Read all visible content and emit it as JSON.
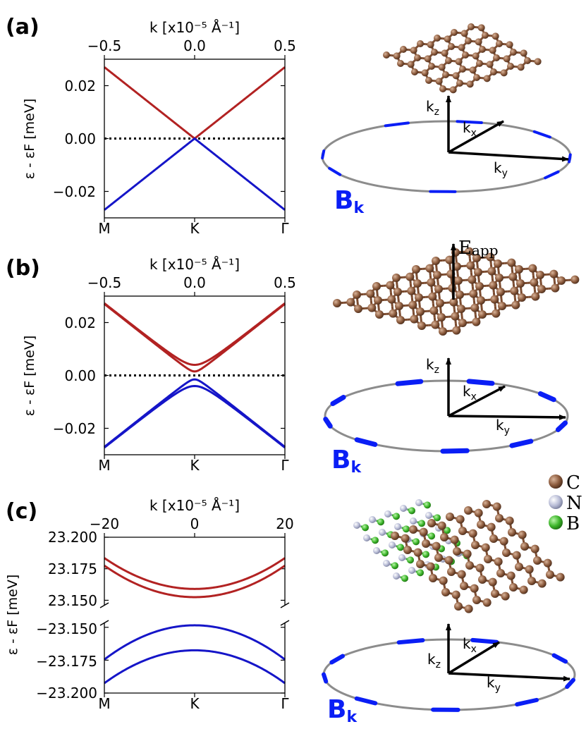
{
  "panel_labels": [
    "(a)",
    "(b)",
    "(c)"
  ],
  "colors": {
    "conduction": "#b22222",
    "valence": "#1515c8",
    "fermi": "#000000",
    "carbon": "#8b5a3c",
    "nitrogen": "#b8bcd6",
    "boron": "#3cb52a",
    "berry": "#0a1ef5",
    "ring": "#8c8c8c"
  },
  "chart_data": [
    {
      "type": "line",
      "panel": "(a)",
      "top_xlabel": "k [x10⁻⁵ Å⁻¹]",
      "top_xlim": [
        -0.5,
        0.5
      ],
      "top_ticks": [
        "−0.5",
        "0.0",
        "0.5"
      ],
      "ylabel": "ε - εF [meV]",
      "ylim": [
        -0.03,
        0.03
      ],
      "yticks": [
        0.02,
        0.0,
        -0.02
      ],
      "ytick_labels": [
        "0.02",
        "0.00",
        "−0.02"
      ],
      "bottom_ticks": [
        "M",
        "K",
        "Γ"
      ],
      "fermi_level": 0.0,
      "series": [
        {
          "name": "conduction",
          "color": "#b22222",
          "gap": 0.0,
          "slope": 0.054
        },
        {
          "name": "valence",
          "color": "#1515c8",
          "gap": 0.0,
          "slope": 0.054
        }
      ]
    },
    {
      "type": "line",
      "panel": "(b)",
      "top_xlabel": "k [x10⁻⁵ Å⁻¹]",
      "top_xlim": [
        -0.5,
        0.5
      ],
      "top_ticks": [
        "−0.5",
        "0.0",
        "0.5"
      ],
      "ylabel": "ε - εF [meV]",
      "ylim": [
        -0.03,
        0.03
      ],
      "yticks": [
        0.02,
        0.0,
        -0.02
      ],
      "ytick_labels": [
        "0.02",
        "0.00",
        "−0.02"
      ],
      "bottom_ticks": [
        "M",
        "K",
        "Γ"
      ],
      "fermi_level": 0.0,
      "series": [
        {
          "name": "conduction-1",
          "color": "#b22222",
          "gap": 0.0015,
          "slope": 0.054
        },
        {
          "name": "conduction-2",
          "color": "#b22222",
          "gap": 0.004,
          "slope": 0.054
        },
        {
          "name": "valence-1",
          "color": "#1515c8",
          "gap": -0.0015,
          "slope": 0.054
        },
        {
          "name": "valence-2",
          "color": "#1515c8",
          "gap": -0.004,
          "slope": 0.054
        }
      ]
    },
    {
      "type": "line",
      "panel": "(c)",
      "top_xlabel": "k [x10⁻⁵ Å⁻¹]",
      "top_xlim": [
        -20,
        20
      ],
      "top_ticks": [
        "−20",
        "0",
        "20"
      ],
      "ylabel": "ε - εF [meV]",
      "bottom_ticks": [
        "M",
        "K",
        "Γ"
      ],
      "upper": {
        "ylim": [
          23.148,
          23.2
        ],
        "yticks": [
          23.2,
          23.175,
          23.15
        ],
        "ytick_labels": [
          "23.200",
          "23.175",
          "23.150"
        ],
        "series": [
          {
            "name": "conduction-1",
            "color": "#b22222",
            "min": 23.1525,
            "edge": 23.1775
          },
          {
            "name": "conduction-2",
            "color": "#b22222",
            "min": 23.159,
            "edge": 23.1835
          }
        ]
      },
      "lower": {
        "ylim": [
          -23.2,
          -23.148
        ],
        "yticks": [
          -23.15,
          -23.175,
          -23.2
        ],
        "ytick_labels": [
          "−23.150",
          "−23.175",
          "−23.200"
        ],
        "series": [
          {
            "name": "valence-1",
            "color": "#1515c8",
            "min": -23.1485,
            "edge": -23.1745
          },
          {
            "name": "valence-2",
            "color": "#1515c8",
            "min": -23.1675,
            "edge": -23.1925
          }
        ]
      }
    }
  ],
  "diagrams": {
    "axis_kz": "k",
    "axis_kz_sub": "z",
    "axis_kx": "k",
    "axis_kx_sub": "x",
    "axis_ky": "k",
    "axis_ky_sub": "y",
    "berry_label": "B",
    "berry_sub": "k",
    "field_label": "E",
    "field_sub": "app",
    "legend": [
      {
        "symbol": "C",
        "color": "#8b5a3c"
      },
      {
        "symbol": "N",
        "color": "#b8bcd6"
      },
      {
        "symbol": "B",
        "color": "#3cb52a"
      }
    ]
  }
}
